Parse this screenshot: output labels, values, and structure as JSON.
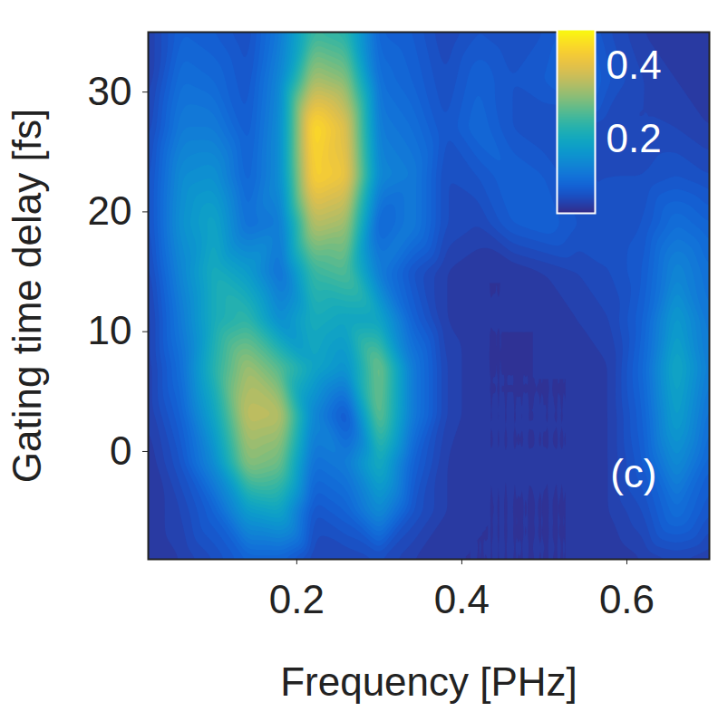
{
  "chart_data": {
    "type": "heatmap",
    "x_label": "Frequency [PHz]",
    "y_label": "Gating time delay [fs]",
    "xlim": [
      0.02,
      0.7
    ],
    "ylim": [
      -9,
      35
    ],
    "xticks": [
      0.2,
      0.4,
      0.6
    ],
    "yticks": [
      0,
      10,
      20,
      30
    ],
    "x": [
      0.02,
      0.06,
      0.1,
      0.14,
      0.18,
      0.22,
      0.26,
      0.3,
      0.34,
      0.38,
      0.42,
      0.46,
      0.5,
      0.54,
      0.58,
      0.62,
      0.66,
      0.7
    ],
    "y": [
      -9,
      -5,
      -1,
      3,
      7,
      11,
      15,
      19,
      23,
      27,
      31,
      35
    ],
    "z": [
      [
        0.02,
        0.03,
        0.05,
        0.08,
        0.08,
        0.04,
        0.04,
        0.05,
        0.03,
        0.02,
        0.02,
        0.02,
        0.02,
        0.02,
        0.02,
        0.03,
        0.04,
        0.03
      ],
      [
        0.02,
        0.04,
        0.08,
        0.18,
        0.2,
        0.06,
        0.08,
        0.15,
        0.06,
        0.03,
        0.02,
        0.02,
        0.02,
        0.02,
        0.03,
        0.05,
        0.1,
        0.06
      ],
      [
        0.02,
        0.06,
        0.15,
        0.32,
        0.3,
        0.1,
        0.12,
        0.22,
        0.08,
        0.03,
        0.02,
        0.02,
        0.02,
        0.02,
        0.03,
        0.07,
        0.15,
        0.08
      ],
      [
        0.03,
        0.08,
        0.2,
        0.37,
        0.36,
        0.14,
        0.06,
        0.3,
        0.12,
        0.04,
        0.02,
        0.02,
        0.02,
        0.02,
        0.03,
        0.08,
        0.19,
        0.1
      ],
      [
        0.03,
        0.1,
        0.24,
        0.34,
        0.28,
        0.2,
        0.16,
        0.31,
        0.12,
        0.04,
        0.02,
        0.02,
        0.02,
        0.02,
        0.03,
        0.09,
        0.21,
        0.12
      ],
      [
        0.03,
        0.12,
        0.22,
        0.25,
        0.15,
        0.22,
        0.2,
        0.2,
        0.08,
        0.03,
        0.02,
        0.02,
        0.02,
        0.03,
        0.04,
        0.08,
        0.18,
        0.11
      ],
      [
        0.04,
        0.14,
        0.22,
        0.18,
        0.1,
        0.26,
        0.28,
        0.12,
        0.06,
        0.03,
        0.02,
        0.02,
        0.03,
        0.04,
        0.05,
        0.07,
        0.14,
        0.1
      ],
      [
        0.05,
        0.16,
        0.2,
        0.1,
        0.12,
        0.36,
        0.34,
        0.08,
        0.12,
        0.05,
        0.04,
        0.07,
        0.08,
        0.06,
        0.05,
        0.06,
        0.1,
        0.08
      ],
      [
        0.05,
        0.15,
        0.16,
        0.08,
        0.15,
        0.45,
        0.42,
        0.14,
        0.12,
        0.05,
        0.06,
        0.08,
        0.07,
        0.05,
        0.05,
        0.05,
        0.06,
        0.05
      ],
      [
        0.04,
        0.12,
        0.12,
        0.07,
        0.15,
        0.47,
        0.4,
        0.12,
        0.1,
        0.06,
        0.09,
        0.06,
        0.05,
        0.05,
        0.04,
        0.04,
        0.04,
        0.03
      ],
      [
        0.03,
        0.1,
        0.09,
        0.06,
        0.14,
        0.35,
        0.32,
        0.1,
        0.08,
        0.05,
        0.08,
        0.06,
        0.07,
        0.1,
        0.06,
        0.04,
        0.03,
        0.02
      ],
      [
        0.03,
        0.08,
        0.07,
        0.05,
        0.12,
        0.26,
        0.24,
        0.08,
        0.07,
        0.04,
        0.06,
        0.05,
        0.06,
        0.08,
        0.05,
        0.03,
        0.02,
        0.02
      ]
    ],
    "colorbar_range": [
      0,
      0.5
    ],
    "colorbar_ticks": [
      0.2,
      0.4
    ],
    "annotations": [
      "(c)"
    ]
  }
}
